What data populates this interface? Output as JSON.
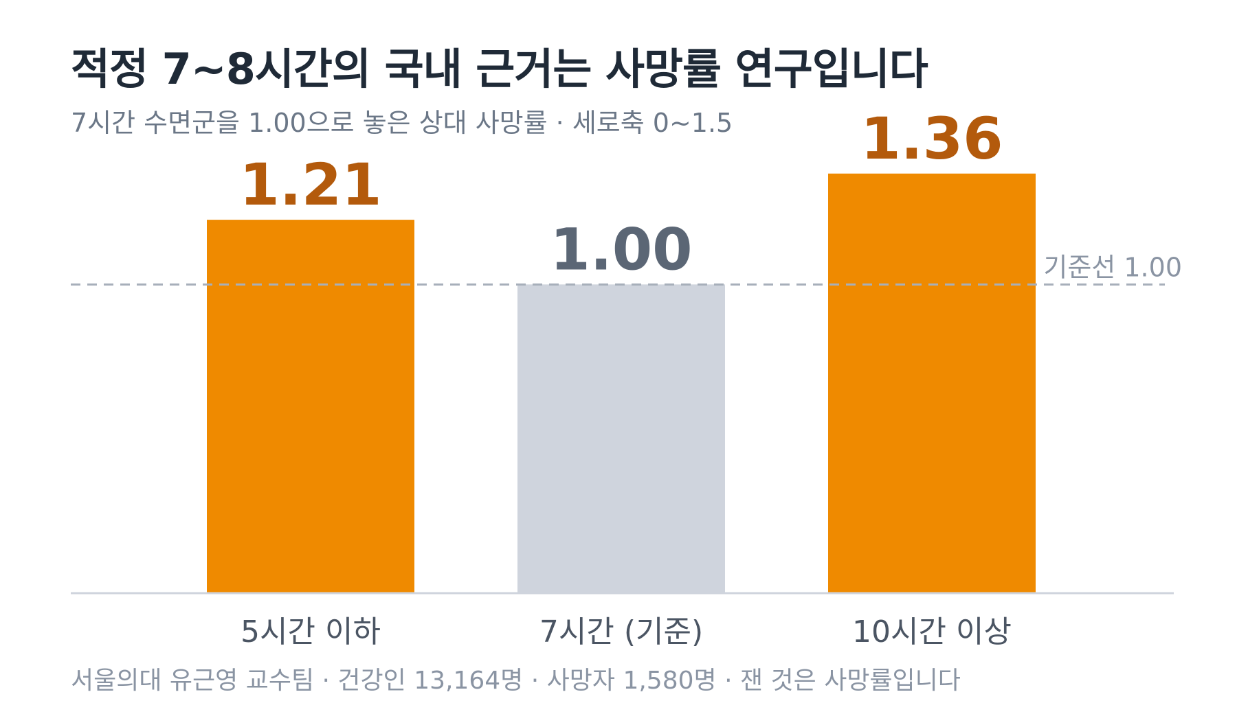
{
  "title": "적정 7~8시간의 국내 근거는 사망률 연구입니다",
  "subtitle": "7시간 수면군을 1.00으로 놓은 상대 사망률 · 세로축 0~1.5",
  "footnote": "서울의대 유근영 교수팀 · 건강인 13,164명 · 사망자 1,580명 · 잰 것은 사망률입니다",
  "chart_data": {
    "type": "bar",
    "categories": [
      "5시간 이하",
      "7시간 (기준)",
      "10시간 이상"
    ],
    "values": [
      1.21,
      1.0,
      1.36
    ],
    "value_labels": [
      "1.21",
      "1.00",
      "1.36"
    ],
    "ylim": [
      0,
      1.5
    ],
    "grid": false,
    "reference_line": {
      "value": 1.0,
      "label": "기준선 1.00"
    },
    "colors": {
      "bars": [
        "#ef8a00",
        "#cfd4dd",
        "#ef8a00"
      ],
      "value_labels": [
        "#b35a0c",
        "#5b6675",
        "#b35a0c"
      ],
      "axis": "#cfd4dd",
      "reference_line": "#a7afba",
      "category_text": "#4b5563"
    }
  }
}
